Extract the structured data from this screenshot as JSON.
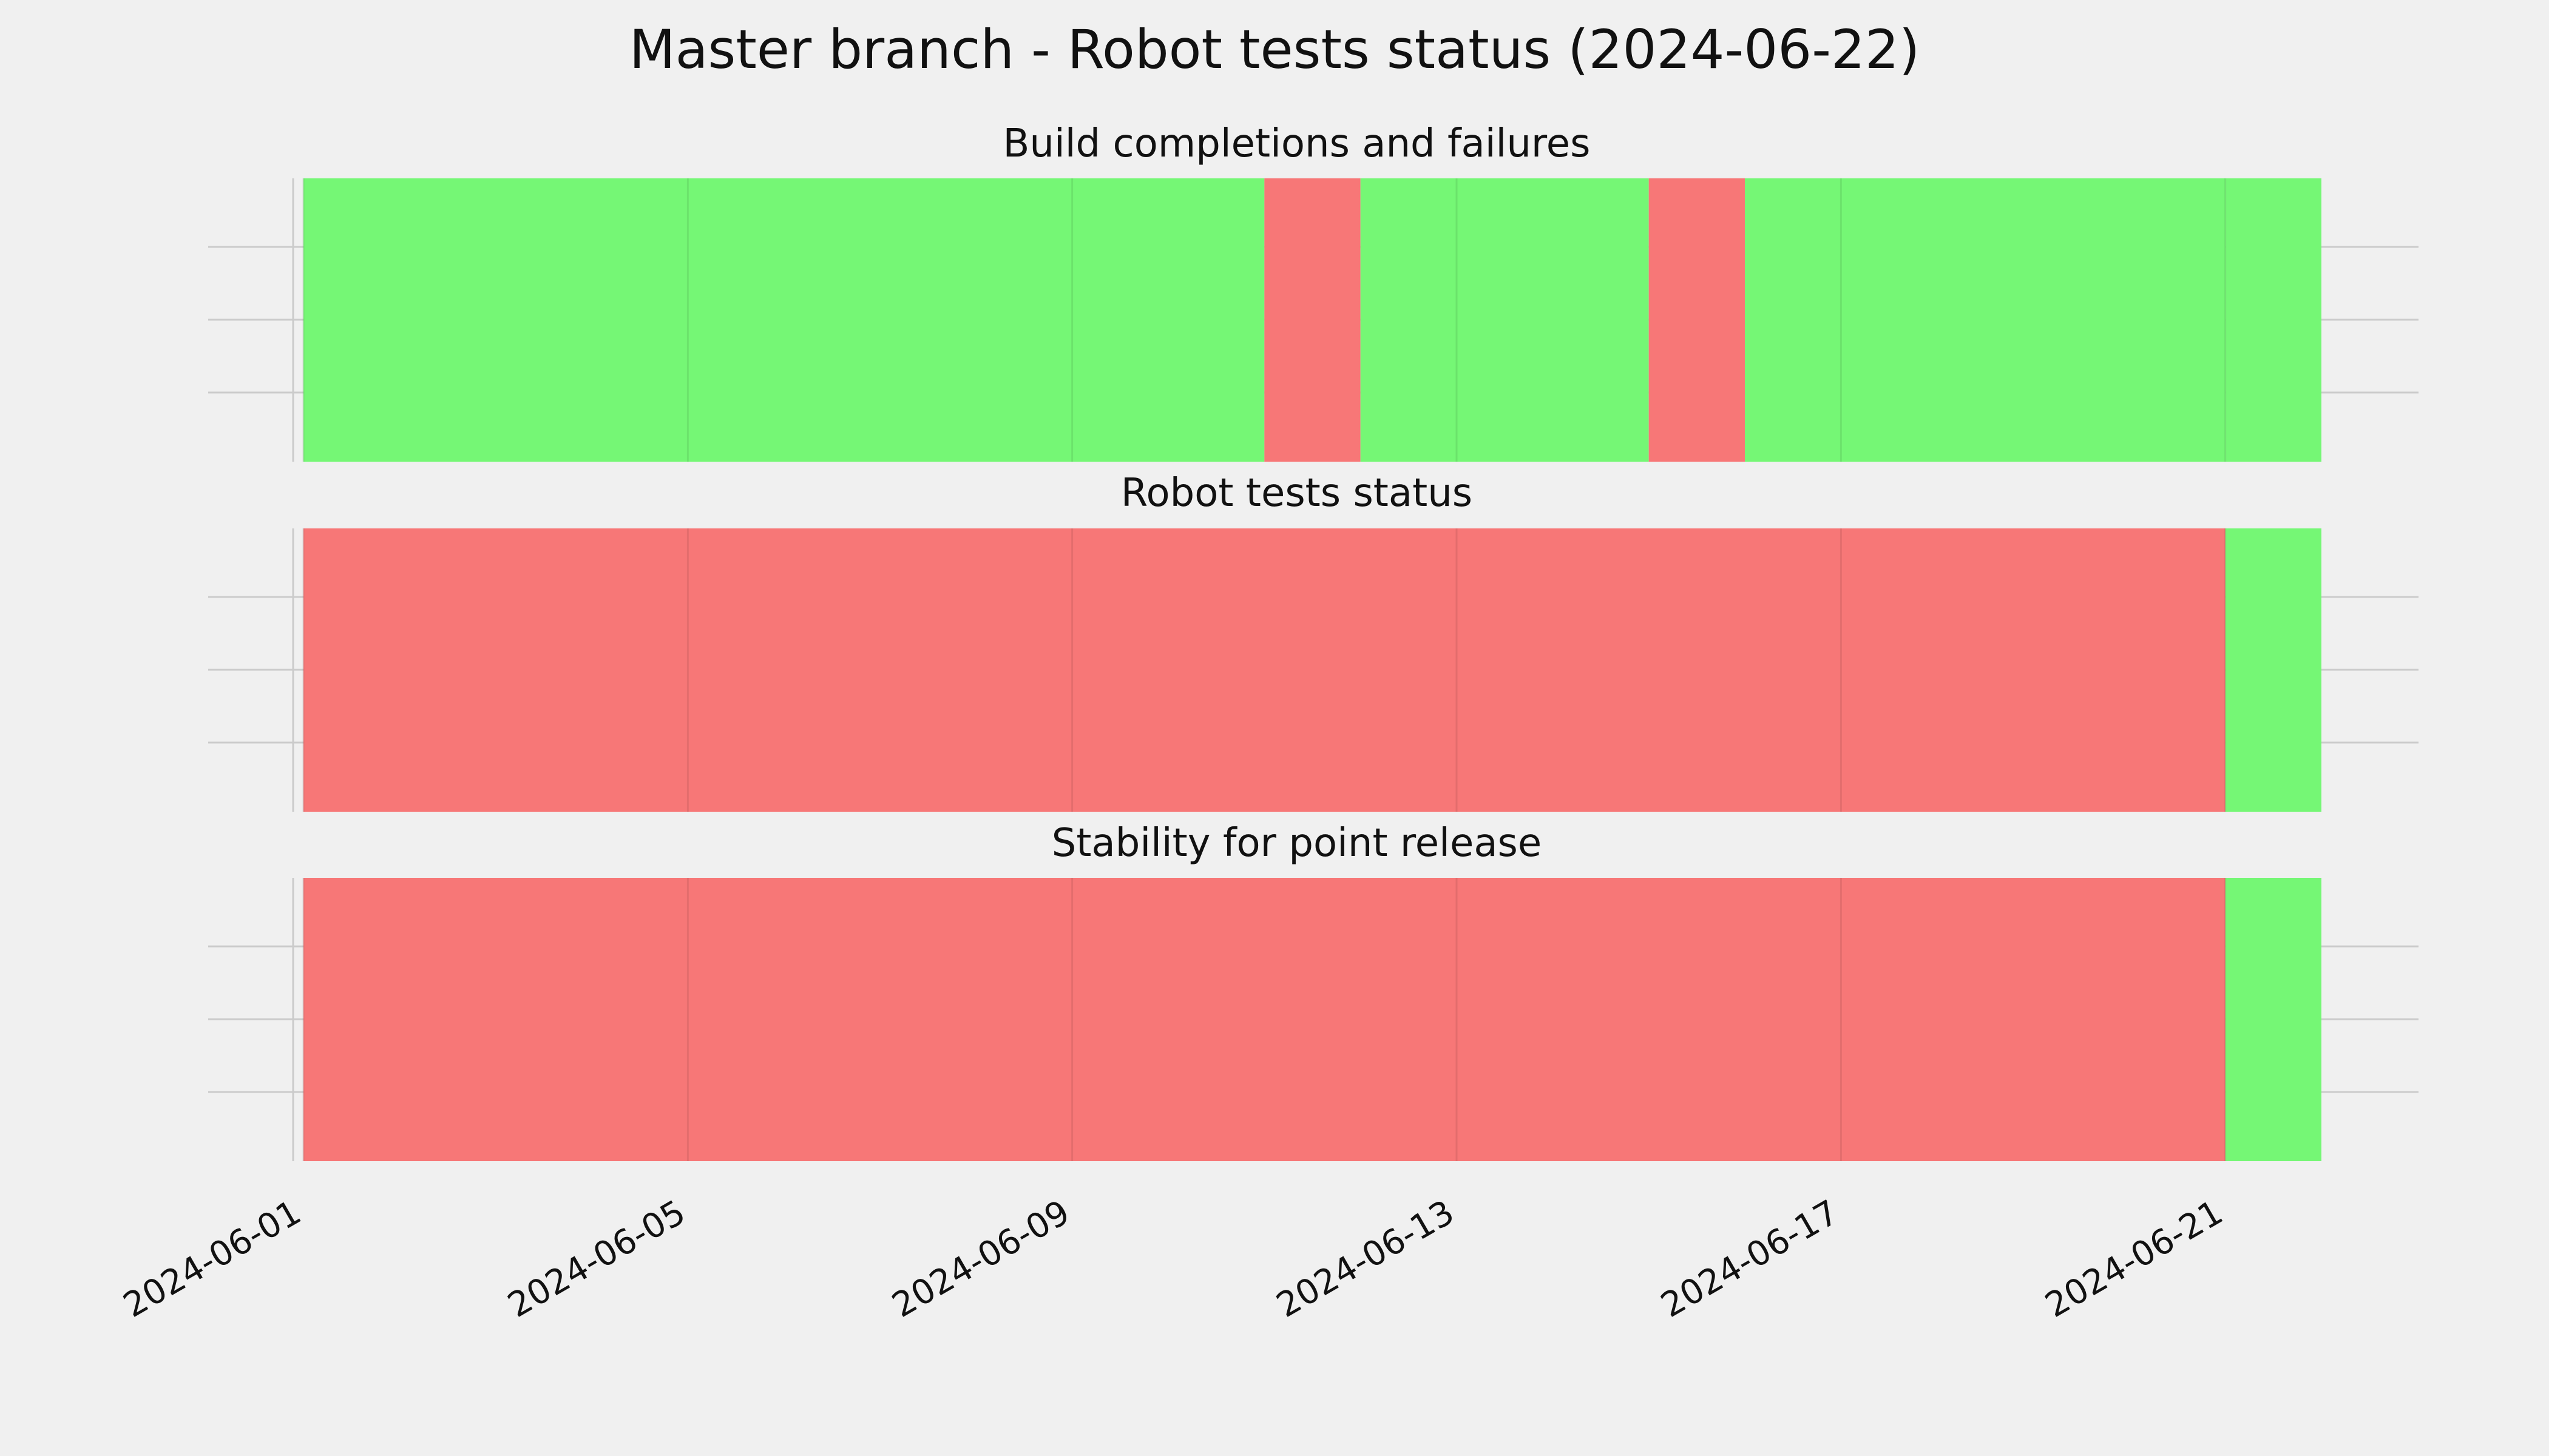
{
  "chart_data": {
    "type": "timeline",
    "title": "Master branch - Robot tests status (2024-06-22)",
    "x_axis": {
      "type": "date",
      "ticks": [
        "2024-06-01",
        "2024-06-05",
        "2024-06-09",
        "2024-06-13",
        "2024-06-17",
        "2024-06-21"
      ],
      "range": [
        "2024-06-01",
        "2024-06-23"
      ]
    },
    "y_axis": {
      "tick_labels": [],
      "gridlines": 3
    },
    "grid": true,
    "colors": {
      "pass": "#75f775",
      "fail": "#f77777",
      "background": "#f0f0f0"
    },
    "panels": [
      {
        "title": "Build completions and failures",
        "segments": [
          {
            "start": "2024-06-01",
            "end": "2024-06-11",
            "status": "pass"
          },
          {
            "start": "2024-06-11",
            "end": "2024-06-12",
            "status": "fail"
          },
          {
            "start": "2024-06-12",
            "end": "2024-06-15",
            "status": "pass"
          },
          {
            "start": "2024-06-15",
            "end": "2024-06-16",
            "status": "fail"
          },
          {
            "start": "2024-06-16",
            "end": "2024-06-21",
            "status": "pass"
          },
          {
            "start": "2024-06-21",
            "end": "2024-06-22",
            "status": "pass"
          }
        ]
      },
      {
        "title": "Robot tests status",
        "segments": [
          {
            "start": "2024-06-01",
            "end": "2024-06-21",
            "status": "fail"
          },
          {
            "start": "2024-06-21",
            "end": "2024-06-22",
            "status": "pass"
          }
        ]
      },
      {
        "title": "Stability for point release",
        "segments": [
          {
            "start": "2024-06-01",
            "end": "2024-06-21",
            "status": "fail"
          },
          {
            "start": "2024-06-21",
            "end": "2024-06-22",
            "status": "pass"
          }
        ]
      }
    ]
  }
}
